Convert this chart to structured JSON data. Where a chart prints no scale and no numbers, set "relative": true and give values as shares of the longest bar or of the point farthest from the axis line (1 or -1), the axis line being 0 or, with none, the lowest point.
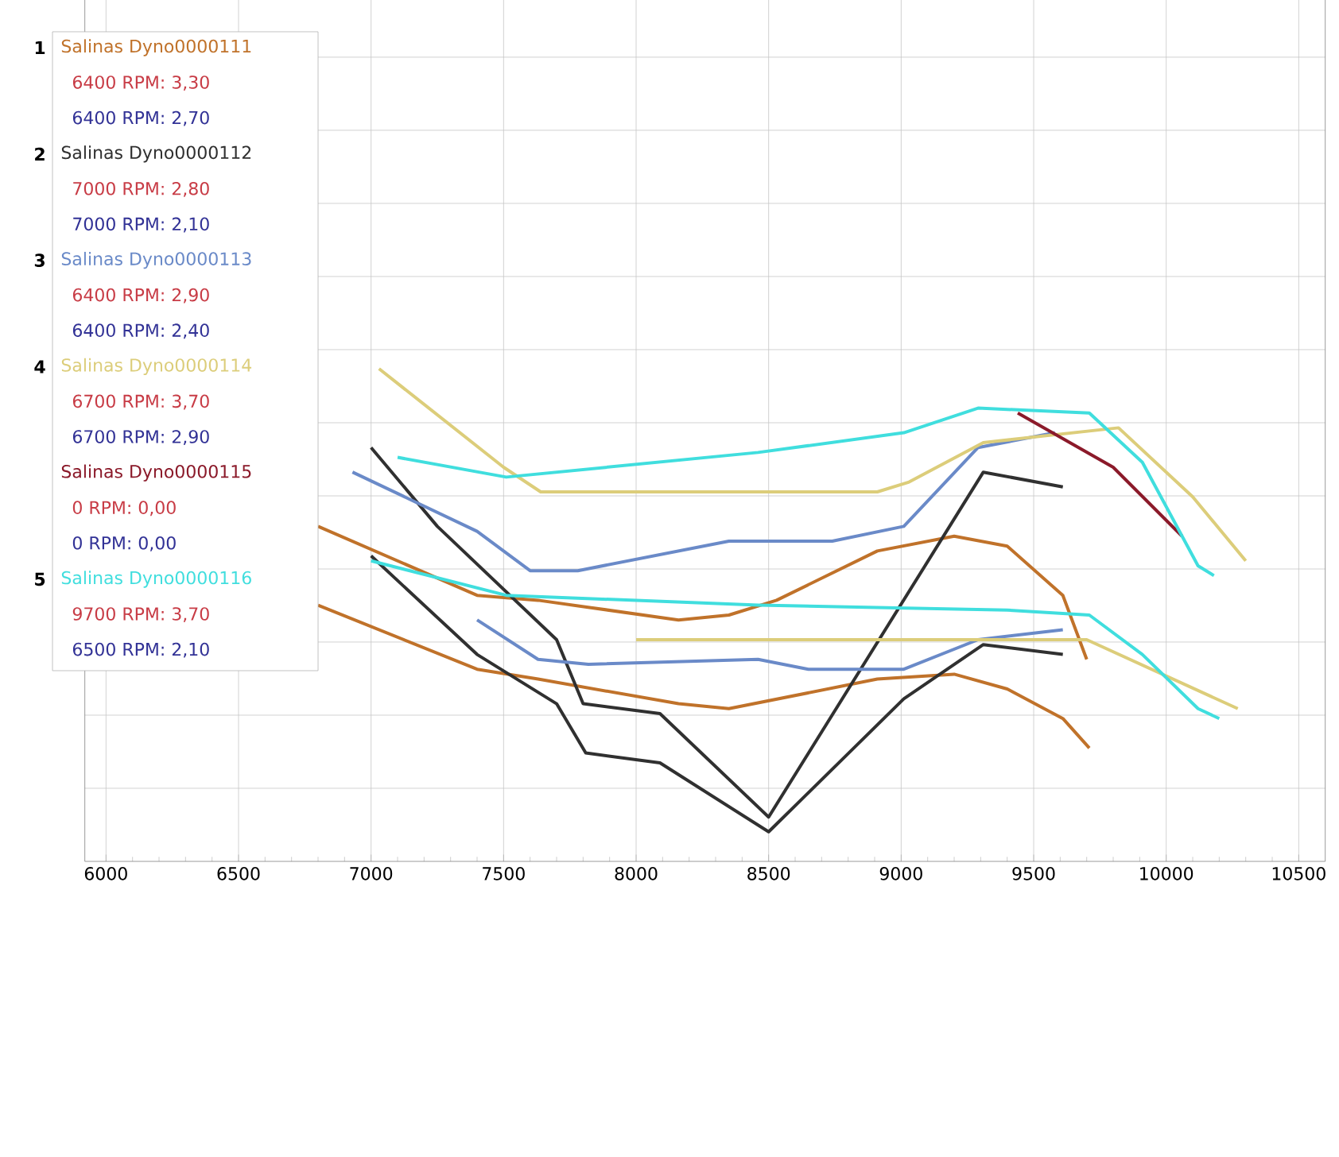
{
  "chart_data": {
    "type": "line",
    "relative": true,
    "grid": true,
    "legend": "top left",
    "marker": "none",
    "line_style": "solid",
    "xlim": [
      5920,
      10600
    ],
    "xticks": [
      6000,
      6500,
      7000,
      7500,
      8000,
      8500,
      9000,
      9500,
      10000,
      10500
    ],
    "annotations": [
      "1",
      "6400 RPM: 3,30",
      "6400 RPM: 2,70",
      "2",
      "7000 RPM: 2,80",
      "7000 RPM: 2,10",
      "3",
      "6400 RPM: 2,90",
      "6400 RPM: 2,40",
      "4",
      "6700 RPM: 3,70",
      "6700 RPM: 2,90",
      "0 RPM: 0,00",
      "0 RPM: 0,00",
      "5",
      "9700 RPM: 3,70",
      "6500 RPM: 2,10"
    ],
    "series": [
      {
        "name": "Salinas Dyno0000111",
        "color": "#c0722a",
        "x": [
          6800,
          7400,
          7630,
          8160,
          8350,
          8530,
          8910,
          9200,
          9400,
          9610,
          9700
        ],
        "values": [
          0.68,
          0.54,
          0.53,
          0.49,
          0.5,
          0.53,
          0.63,
          0.66,
          0.64,
          0.54,
          0.41
        ]
      },
      {
        "color": "#c0722a",
        "x": [
          6800,
          7400,
          7630,
          8160,
          8350,
          8910,
          9200,
          9400,
          9610,
          9710
        ],
        "values": [
          0.52,
          0.39,
          0.37,
          0.32,
          0.31,
          0.37,
          0.38,
          0.35,
          0.29,
          0.23
        ]
      },
      {
        "name": "Salinas Dyno0000112",
        "color": "#303030",
        "x": [
          7000,
          7250,
          7700,
          7800,
          8090,
          8500,
          9310,
          9610
        ],
        "values": [
          0.84,
          0.68,
          0.45,
          0.32,
          0.3,
          0.09,
          0.79,
          0.76
        ]
      },
      {
        "color": "#303030",
        "x": [
          7000,
          7400,
          7700,
          7810,
          8090,
          8500,
          9010,
          9310,
          9610
        ],
        "values": [
          0.62,
          0.42,
          0.32,
          0.22,
          0.2,
          0.06,
          0.33,
          0.44,
          0.42
        ]
      },
      {
        "name": "Salinas Dyno0000113",
        "color": "#6a8ac8",
        "x": [
          6930,
          7400,
          7600,
          7780,
          8350,
          8740,
          9010,
          9290,
          9580
        ],
        "values": [
          0.79,
          0.67,
          0.59,
          0.59,
          0.65,
          0.65,
          0.68,
          0.84,
          0.87
        ]
      },
      {
        "color": "#6a8ac8",
        "x": [
          7400,
          7630,
          7820,
          8460,
          8650,
          9010,
          9290,
          9610
        ],
        "values": [
          0.49,
          0.41,
          0.4,
          0.41,
          0.39,
          0.39,
          0.45,
          0.47
        ]
      },
      {
        "name": "Salinas Dyno0000114",
        "color": "#dccd7a",
        "x": [
          7030,
          7500,
          7640,
          8910,
          9030,
          9310,
          9820,
          10100,
          10300
        ],
        "values": [
          1.0,
          0.8,
          0.75,
          0.75,
          0.77,
          0.85,
          0.88,
          0.74,
          0.61
        ]
      },
      {
        "color": "#dccd7a",
        "x": [
          8000,
          9700,
          10270
        ],
        "values": [
          0.45,
          0.45,
          0.31
        ]
      },
      {
        "name": "Salinas Dyno0000115",
        "color": "#8b1a2a",
        "x": [
          9440,
          9800,
          10060
        ],
        "values": [
          0.91,
          0.8,
          0.66
        ]
      },
      {
        "name": "Salinas Dyno0000116",
        "color": "#40dede",
        "x": [
          7100,
          7510,
          8460,
          9010,
          9290,
          9710,
          9910,
          10120,
          10180
        ],
        "values": [
          0.82,
          0.78,
          0.83,
          0.87,
          0.92,
          0.91,
          0.81,
          0.6,
          0.58
        ]
      },
      {
        "color": "#40dede",
        "x": [
          7000,
          7510,
          8460,
          9400,
          9710,
          9910,
          10120,
          10200
        ],
        "values": [
          0.61,
          0.54,
          0.52,
          0.51,
          0.5,
          0.42,
          0.31,
          0.29
        ]
      }
    ]
  }
}
